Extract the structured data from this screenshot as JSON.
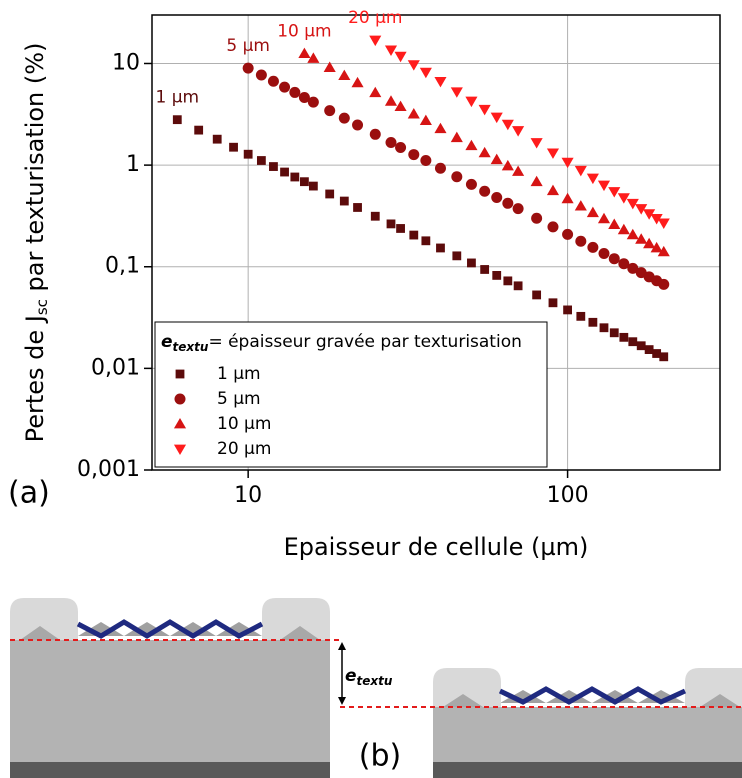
{
  "chart_data": {
    "type": "scatter",
    "x_label": "Epaisseur de cellule (µm)",
    "y_label": {
      "main": "Pertes de J",
      "sub": "sc",
      "tail": " par texturisation (%)"
    },
    "panel_label": "(a)",
    "legend_title": {
      "main": "e",
      "sub": "textu",
      "tail": "= épaisseur gravée par texturisation"
    },
    "legend": "lower left",
    "xlog": true,
    "ylog": true,
    "grid": true,
    "xlim": [
      5,
      300
    ],
    "ylim": [
      0.001,
      30
    ],
    "xticks": [
      10,
      100
    ],
    "yticks": [
      {
        "value": 0.001,
        "label": "0,001"
      },
      {
        "value": 0.01,
        "label": "0,01"
      },
      {
        "value": 0.1,
        "label": "0,1"
      },
      1,
      10
    ],
    "series": [
      {
        "name": "1 µm",
        "color": "#5c0b0b",
        "marker": "square",
        "x": [
          6,
          7,
          8,
          9,
          10,
          11,
          12,
          13,
          14,
          15,
          16,
          18,
          20,
          22,
          25,
          28,
          30,
          33,
          36,
          40,
          45,
          50,
          55,
          60,
          65,
          70,
          80,
          90,
          100,
          110,
          120,
          130,
          140,
          150,
          160,
          170,
          180,
          190,
          200
        ],
        "values": [
          2.8,
          2.21,
          1.8,
          1.5,
          1.28,
          1.11,
          0.968,
          0.855,
          0.764,
          0.687,
          0.622,
          0.52,
          0.443,
          0.383,
          0.314,
          0.264,
          0.238,
          0.205,
          0.18,
          0.153,
          0.128,
          0.109,
          0.094,
          0.0822,
          0.0726,
          0.0649,
          0.0528,
          0.0442,
          0.0376,
          0.0325,
          0.0284,
          0.0251,
          0.0224,
          0.0202,
          0.0183,
          0.0167,
          0.0153,
          0.014,
          0.013
        ]
      },
      {
        "name": "5 µm",
        "color": "#9b0f0f",
        "marker": "circle",
        "x": [
          10,
          11,
          12,
          13,
          14,
          15,
          16,
          18,
          20,
          22,
          25,
          28,
          30,
          33,
          36,
          40,
          45,
          50,
          55,
          60,
          65,
          70,
          80,
          90,
          100,
          110,
          120,
          130,
          140,
          150,
          160,
          170,
          180,
          190,
          200
        ],
        "values": [
          9,
          7.71,
          6.68,
          5.85,
          5.19,
          4.63,
          4.17,
          3.44,
          2.9,
          2.48,
          2.01,
          1.67,
          1.49,
          1.27,
          1.11,
          0.931,
          0.769,
          0.646,
          0.553,
          0.48,
          0.421,
          0.373,
          0.3,
          0.247,
          0.208,
          0.178,
          0.155,
          0.135,
          0.12,
          0.107,
          0.0964,
          0.0875,
          0.0796,
          0.0728,
          0.067
        ]
      },
      {
        "name": "10 µm",
        "color": "#d61414",
        "marker": "triangle-up",
        "x": [
          15,
          16,
          18,
          20,
          22,
          25,
          28,
          30,
          33,
          36,
          40,
          45,
          50,
          55,
          60,
          65,
          70,
          80,
          90,
          100,
          110,
          120,
          130,
          140,
          150,
          160,
          170,
          180,
          190,
          200
        ],
        "values": [
          12.5,
          11.2,
          9.12,
          7.59,
          6.44,
          5.15,
          4.24,
          3.76,
          3.18,
          2.74,
          2.28,
          1.86,
          1.55,
          1.32,
          1.13,
          0.982,
          0.865,
          0.686,
          0.56,
          0.466,
          0.395,
          0.34,
          0.296,
          0.26,
          0.231,
          0.206,
          0.186,
          0.168,
          0.153,
          0.14
        ]
      },
      {
        "name": "20 µm",
        "color": "#ff1c1c",
        "marker": "triangle-down",
        "x": [
          25,
          28,
          30,
          33,
          36,
          40,
          45,
          50,
          55,
          60,
          65,
          70,
          80,
          90,
          100,
          110,
          120,
          130,
          140,
          150,
          160,
          170,
          180,
          190,
          200
        ],
        "values": [
          17,
          13.6,
          11.8,
          9.75,
          8.22,
          6.67,
          5.27,
          4.27,
          3.54,
          2.97,
          2.53,
          2.19,
          1.67,
          1.32,
          1.07,
          0.889,
          0.746,
          0.637,
          0.55,
          0.479,
          0.421,
          0.374,
          0.333,
          0.299,
          0.27
        ]
      }
    ]
  },
  "diagram": {
    "thickness_label": {
      "main": "e",
      "sub": "textu"
    },
    "panel_label": "(b)"
  }
}
